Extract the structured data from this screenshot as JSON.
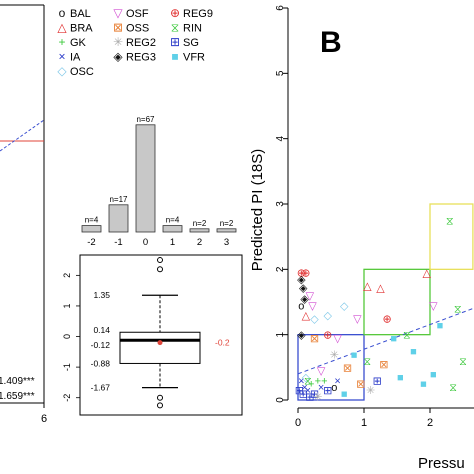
{
  "panel_b_label": "B",
  "colors": {
    "red_line": "#e0453a",
    "blue_line": "#3a4fd0",
    "green_box": "#55c83a",
    "yellow_box": "#e8e05a",
    "bar_fill": "#c8c8c8",
    "median_mark": "#e0453a"
  },
  "legend": [
    {
      "code": "BAL",
      "icon": "open-circle-icon",
      "color": "#111111",
      "glyph": "o"
    },
    {
      "code": "OSF",
      "icon": "down-triangle-icon",
      "color": "#d24fd2",
      "glyph": "▽"
    },
    {
      "code": "REG9",
      "icon": "circled-plus-icon",
      "color": "#e03030",
      "glyph": "⊕"
    },
    {
      "code": "BRA",
      "icon": "triangle-icon",
      "color": "#e03030",
      "glyph": "△"
    },
    {
      "code": "OSS",
      "icon": "boxed-x-icon",
      "color": "#e8833a",
      "glyph": "⊠"
    },
    {
      "code": "RIN",
      "icon": "hourglass-icon",
      "color": "#3ac83a",
      "glyph": "⧖"
    },
    {
      "code": "GK",
      "icon": "plus-icon",
      "color": "#3ac83a",
      "glyph": "+"
    },
    {
      "code": "REG2",
      "icon": "asterisk-icon",
      "color": "#aaaaaa",
      "glyph": "✳"
    },
    {
      "code": "SG",
      "icon": "boxed-plus-icon",
      "color": "#2a3ac8",
      "glyph": "⊞"
    },
    {
      "code": "IA",
      "icon": "cross-icon",
      "color": "#2a3ac8",
      "glyph": "×"
    },
    {
      "code": "REG3",
      "icon": "circled-diamond-icon",
      "color": "#111111",
      "glyph": "◈"
    },
    {
      "code": "VFR",
      "icon": "square-icon",
      "color": "#5fd0e8",
      "glyph": "■"
    },
    {
      "code": "OSC",
      "icon": "diamond-icon",
      "color": "#7fc8e8",
      "glyph": "◇"
    }
  ],
  "left_partial": {
    "stats": [
      "1.409***",
      "1.659***"
    ],
    "xtick": "6"
  },
  "chart_data": [
    {
      "type": "bar",
      "categories": [
        "-2",
        "-1",
        "0",
        "1",
        "2",
        "3"
      ],
      "values": [
        4,
        17,
        67,
        4,
        2,
        2
      ],
      "bar_labels": [
        "n=4",
        "n=17",
        "n=67",
        "n=4",
        "n=2",
        "n=2"
      ],
      "ylim": [
        0,
        70
      ]
    },
    {
      "type": "boxplot",
      "labels": [
        "1.35",
        "0.14",
        "-0.12",
        "-0.88",
        "-1.67"
      ],
      "mean_label": "-0.2",
      "whisker_high": 1.35,
      "q3": 0.14,
      "median": -0.12,
      "q1": -0.88,
      "whisker_low": -1.67,
      "mean": -0.2,
      "outliers": [
        2.5,
        2.2,
        -2.0,
        -2.25
      ],
      "y_ticks": [
        2,
        1,
        0,
        -1,
        -2
      ],
      "ylim": [
        -2.5,
        2.6
      ]
    },
    {
      "type": "scatter",
      "ylabel": "Predicted PI (18S)",
      "xlabel": "Pressu",
      "x_ticks": [
        0,
        1,
        2
      ],
      "y_ticks": [
        0,
        1,
        2,
        3,
        4,
        5,
        6
      ],
      "xlim": [
        0,
        2.65
      ],
      "ylim": [
        0,
        6
      ],
      "regression_line": [
        [
          0,
          0.4
        ],
        [
          2.65,
          1.4
        ]
      ],
      "points": [
        {
          "x": 0.05,
          "y": 1.95,
          "code": "REG9"
        },
        {
          "x": 0.12,
          "y": 1.95,
          "code": "REG9"
        },
        {
          "x": 0.05,
          "y": 1.85,
          "code": "REG3"
        },
        {
          "x": 0.08,
          "y": 1.72,
          "code": "REG3"
        },
        {
          "x": 0.1,
          "y": 1.55,
          "code": "REG3"
        },
        {
          "x": 0.18,
          "y": 1.6,
          "code": "OSF"
        },
        {
          "x": 0.22,
          "y": 1.45,
          "code": "OSF"
        },
        {
          "x": 0.05,
          "y": 1.45,
          "code": "BAL"
        },
        {
          "x": 0.12,
          "y": 1.3,
          "code": "BRA"
        },
        {
          "x": 0.25,
          "y": 1.25,
          "code": "OSC"
        },
        {
          "x": 0.45,
          "y": 1.3,
          "code": "OSC"
        },
        {
          "x": 0.7,
          "y": 1.45,
          "code": "OSC"
        },
        {
          "x": 0.05,
          "y": 1.0,
          "code": "REG3"
        },
        {
          "x": 0.25,
          "y": 0.95,
          "code": "OSS"
        },
        {
          "x": 0.45,
          "y": 1.0,
          "code": "REG9"
        },
        {
          "x": 0.6,
          "y": 0.95,
          "code": "OSF"
        },
        {
          "x": 0.9,
          "y": 1.25,
          "code": "OSF"
        },
        {
          "x": 1.05,
          "y": 1.75,
          "code": "BRA"
        },
        {
          "x": 1.25,
          "y": 1.72,
          "code": "BRA"
        },
        {
          "x": 1.35,
          "y": 1.25,
          "code": "REG9"
        },
        {
          "x": 1.95,
          "y": 1.95,
          "code": "BRA"
        },
        {
          "x": 2.05,
          "y": 1.45,
          "code": "OSF"
        },
        {
          "x": 2.15,
          "y": 1.15,
          "code": "VFR"
        },
        {
          "x": 1.65,
          "y": 1.0,
          "code": "RIN"
        },
        {
          "x": 1.05,
          "y": 0.6,
          "code": "RIN"
        },
        {
          "x": 1.45,
          "y": 0.95,
          "code": "VFR"
        },
        {
          "x": 0.85,
          "y": 0.7,
          "code": "VFR"
        },
        {
          "x": 1.3,
          "y": 0.55,
          "code": "OSS"
        },
        {
          "x": 1.75,
          "y": 0.75,
          "code": "VFR"
        },
        {
          "x": 2.05,
          "y": 0.4,
          "code": "VFR"
        },
        {
          "x": 1.55,
          "y": 0.35,
          "code": "VFR"
        },
        {
          "x": 1.9,
          "y": 0.25,
          "code": "VFR"
        },
        {
          "x": 2.35,
          "y": 0.2,
          "code": "RIN"
        },
        {
          "x": 2.42,
          "y": 1.4,
          "code": "RIN"
        },
        {
          "x": 2.5,
          "y": 0.6,
          "code": "RIN"
        },
        {
          "x": 2.3,
          "y": 2.75,
          "code": "RIN"
        },
        {
          "x": 1.1,
          "y": 0.15,
          "code": "REG2"
        },
        {
          "x": 1.2,
          "y": 0.3,
          "code": "SG"
        },
        {
          "x": 0.95,
          "y": 0.25,
          "code": "OSS"
        },
        {
          "x": 0.35,
          "y": 0.45,
          "code": "OSF"
        },
        {
          "x": 0.55,
          "y": 0.7,
          "code": "REG2"
        },
        {
          "x": 0.75,
          "y": 0.5,
          "code": "OSS"
        },
        {
          "x": 0.05,
          "y": 0.3,
          "code": "IA"
        },
        {
          "x": 0.1,
          "y": 0.2,
          "code": "IA"
        },
        {
          "x": 0.15,
          "y": 0.15,
          "code": "IA"
        },
        {
          "x": 0.08,
          "y": 0.1,
          "code": "SG"
        },
        {
          "x": 0.2,
          "y": 0.25,
          "code": "GK"
        },
        {
          "x": 0.3,
          "y": 0.3,
          "code": "GK"
        },
        {
          "x": 0.25,
          "y": 0.1,
          "code": "SG"
        },
        {
          "x": 0.4,
          "y": 0.3,
          "code": "GK"
        },
        {
          "x": 0.12,
          "y": 0.35,
          "code": "OSC"
        },
        {
          "x": 0.35,
          "y": 0.2,
          "code": "IA"
        },
        {
          "x": 0.18,
          "y": 0.05,
          "code": "SG"
        },
        {
          "x": 0.6,
          "y": 0.3,
          "code": "IA"
        },
        {
          "x": 0.55,
          "y": 0.2,
          "code": "BAL"
        },
        {
          "x": 0.3,
          "y": 0.05,
          "code": "REG2"
        },
        {
          "x": 0.45,
          "y": 0.15,
          "code": "SG"
        },
        {
          "x": 0.7,
          "y": 0.1,
          "code": "VFR"
        },
        {
          "x": 0.02,
          "y": 0.15,
          "code": "SG"
        },
        {
          "x": 0.15,
          "y": 0.3,
          "code": "RIN"
        }
      ],
      "boxes": [
        {
          "x0": 0,
          "x1": 1,
          "y0": 0,
          "y1": 1,
          "color": "blue"
        },
        {
          "x0": 1,
          "x1": 2,
          "y0": 1,
          "y1": 2,
          "color": "green"
        },
        {
          "x0": 2,
          "x1": 2.65,
          "y0": 2,
          "y1": 3,
          "color": "yellow"
        }
      ]
    }
  ]
}
